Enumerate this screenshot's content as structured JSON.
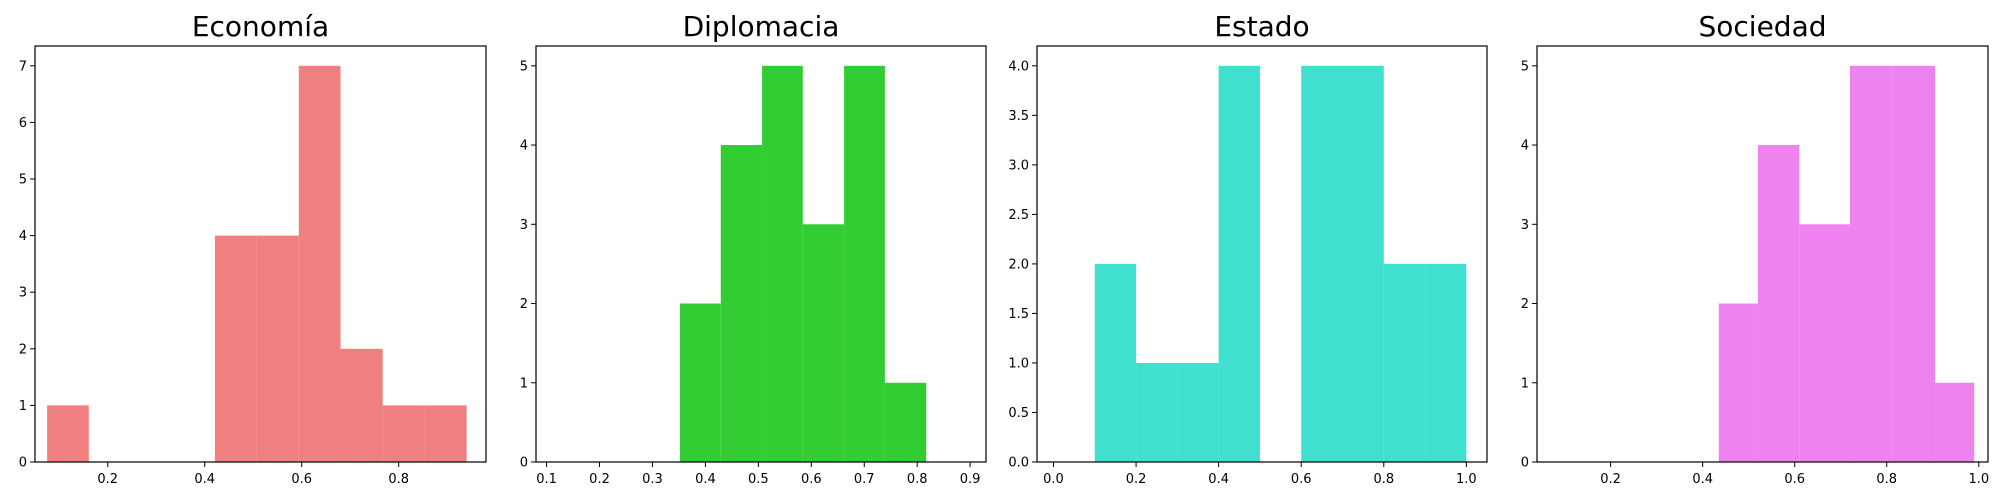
{
  "chart_data": [
    {
      "type": "histogram",
      "title": "Economía",
      "color": "#F08080",
      "xlim": [
        0.05,
        0.98
      ],
      "ylim": [
        0,
        7.35
      ],
      "xticks": [
        0.2,
        0.4,
        0.6,
        0.8
      ],
      "xtick_labels": [
        "0.2",
        "0.4",
        "0.6",
        "0.8"
      ],
      "yticks": [
        0,
        1,
        2,
        3,
        4,
        5,
        6,
        7
      ],
      "ytick_labels": [
        "0",
        "1",
        "2",
        "3",
        "4",
        "5",
        "6",
        "7"
      ],
      "bins": [
        {
          "x0": 0.075,
          "x1": 0.161,
          "count": 1
        },
        {
          "x0": 0.161,
          "x1": 0.248,
          "count": 0
        },
        {
          "x0": 0.248,
          "x1": 0.334,
          "count": 0
        },
        {
          "x0": 0.334,
          "x1": 0.421,
          "count": 0
        },
        {
          "x0": 0.421,
          "x1": 0.507,
          "count": 4
        },
        {
          "x0": 0.507,
          "x1": 0.594,
          "count": 4
        },
        {
          "x0": 0.594,
          "x1": 0.68,
          "count": 7
        },
        {
          "x0": 0.68,
          "x1": 0.767,
          "count": 2
        },
        {
          "x0": 0.767,
          "x1": 0.853,
          "count": 1
        },
        {
          "x0": 0.853,
          "x1": 0.94,
          "count": 1
        }
      ]
    },
    {
      "type": "histogram",
      "title": "Diplomacia",
      "color": "#32CD32",
      "xlim": [
        0.08,
        0.93
      ],
      "ylim": [
        0,
        5.25
      ],
      "xticks": [
        0.1,
        0.2,
        0.3,
        0.4,
        0.5,
        0.6,
        0.7,
        0.8,
        0.9
      ],
      "xtick_labels": [
        "0.1",
        "0.2",
        "0.3",
        "0.4",
        "0.5",
        "0.6",
        "0.7",
        "0.8",
        "0.9"
      ],
      "yticks": [
        0,
        1,
        2,
        3,
        4,
        5
      ],
      "ytick_labels": [
        "0",
        "1",
        "2",
        "3",
        "4",
        "5"
      ],
      "bins": [
        {
          "x0": 0.352,
          "x1": 0.429,
          "count": 2
        },
        {
          "x0": 0.429,
          "x1": 0.507,
          "count": 4
        },
        {
          "x0": 0.507,
          "x1": 0.584,
          "count": 5
        },
        {
          "x0": 0.584,
          "x1": 0.662,
          "count": 3
        },
        {
          "x0": 0.662,
          "x1": 0.739,
          "count": 5
        },
        {
          "x0": 0.739,
          "x1": 0.817,
          "count": 1
        }
      ]
    },
    {
      "type": "histogram",
      "title": "Estado",
      "color": "#40E0D0",
      "xlim": [
        -0.04,
        1.05
      ],
      "ylim": [
        0,
        4.2
      ],
      "xticks": [
        0.0,
        0.2,
        0.4,
        0.6,
        0.8,
        1.0
      ],
      "xtick_labels": [
        "0.0",
        "0.2",
        "0.4",
        "0.6",
        "0.8",
        "1.0"
      ],
      "yticks": [
        0.0,
        0.5,
        1.0,
        1.5,
        2.0,
        2.5,
        3.0,
        3.5,
        4.0
      ],
      "ytick_labels": [
        "0.0",
        "0.5",
        "1.0",
        "1.5",
        "2.0",
        "2.5",
        "3.0",
        "3.5",
        "4.0"
      ],
      "bins": [
        {
          "x0": 0.1,
          "x1": 0.2,
          "count": 2
        },
        {
          "x0": 0.2,
          "x1": 0.3,
          "count": 1
        },
        {
          "x0": 0.3,
          "x1": 0.4,
          "count": 1
        },
        {
          "x0": 0.4,
          "x1": 0.5,
          "count": 4
        },
        {
          "x0": 0.5,
          "x1": 0.6,
          "count": 0
        },
        {
          "x0": 0.6,
          "x1": 0.7,
          "count": 4
        },
        {
          "x0": 0.7,
          "x1": 0.8,
          "count": 4
        },
        {
          "x0": 0.8,
          "x1": 0.9,
          "count": 2
        },
        {
          "x0": 0.9,
          "x1": 1.0,
          "count": 2
        }
      ]
    },
    {
      "type": "histogram",
      "title": "Sociedad",
      "color": "#EE82EE",
      "xlim": [
        0.04,
        1.02
      ],
      "ylim": [
        0,
        5.25
      ],
      "xticks": [
        0.2,
        0.4,
        0.6,
        0.8,
        1.0
      ],
      "xtick_labels": [
        "0.2",
        "0.4",
        "0.6",
        "0.8",
        "1.0"
      ],
      "yticks": [
        0,
        1,
        2,
        3,
        4,
        5
      ],
      "ytick_labels": [
        "0",
        "1",
        "2",
        "3",
        "4",
        "5"
      ],
      "bins": [
        {
          "x0": 0.435,
          "x1": 0.52,
          "count": 2
        },
        {
          "x0": 0.52,
          "x1": 0.61,
          "count": 4
        },
        {
          "x0": 0.61,
          "x1": 0.72,
          "count": 3
        },
        {
          "x0": 0.72,
          "x1": 0.81,
          "count": 5
        },
        {
          "x0": 0.81,
          "x1": 0.905,
          "count": 5
        },
        {
          "x0": 0.905,
          "x1": 0.99,
          "count": 1
        }
      ]
    }
  ]
}
